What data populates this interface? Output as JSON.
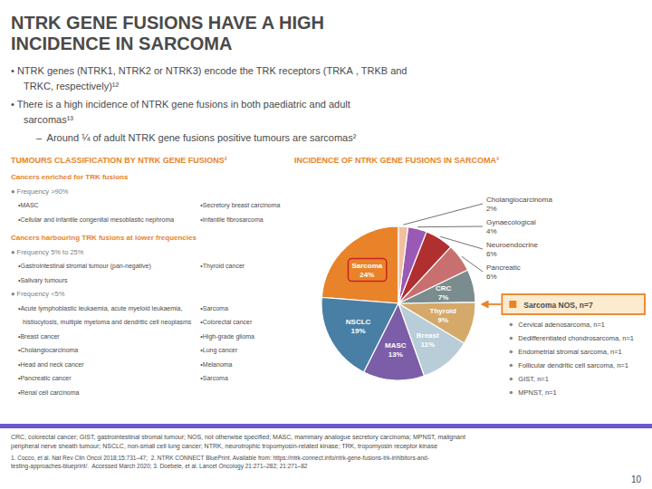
{
  "title": [
    "NTRK GENE FUSIONS HAVE A HIGH",
    "INCIDENCE IN SARCOMA"
  ],
  "intro": [
    "• NTRK genes (NTRK1, NTRK2 or NTRK3) encode the TRK receptors (TRKA , TRKB and",
    "TRKC, respectively)¹²",
    "• There is a high incidence of NTRK gene fusions in both paediatric and adult",
    "sarcomas¹³",
    "–  Around ¼ of adult NTRK gene fusions positive tumours are sarcomas²"
  ],
  "classification": {
    "title": "TUMOURS CLASSIFICATION BY NTRK GENE FUSIONS²",
    "sections": [
      {
        "heading": "Cancers enriched for TRK fusions",
        "groups": [
          {
            "label": "● Frequency >90%",
            "items": [
              [
                "•MASC",
                "•Secretory breast carcinoma"
              ],
              [
                "•Cellular and infantile congenital mesoblastic nephroma",
                "•Infantile fibrosarcoma"
              ]
            ]
          }
        ]
      },
      {
        "heading": "Cancers harbouring TRK fusions at lower frequencies",
        "groups": [
          {
            "label": "● Frequency 5% to 25%",
            "items": [
              [
                "•Gastrointestinal stromal tumour (pan-negative)",
                "•Thyroid cancer"
              ],
              [
                "•Salivary tumours"
              ]
            ]
          },
          {
            "label": "● Frequency <5%",
            "items": [
              [
                "•Acute lymphoblastic leukaemia, acute myeloid leukaemia,",
                "•Sarcoma"
              ],
              [
                "histiocytosis, multiple myeloma and dendritic cell neoplasms",
                "•Colorectal cancer"
              ],
              [
                "•Breast cancer",
                "•High-grade glioma"
              ],
              [
                "•Cholangiocarcinoma",
                "•Lung cancer"
              ],
              [
                "•Head and neck cancer",
                "•Melanoma"
              ],
              [
                "•Pancreatic cancer",
                "•Sarcoma"
              ],
              [
                "•Renal cell carcinoma"
              ]
            ]
          }
        ]
      }
    ]
  },
  "chart_data": {
    "type": "pie",
    "title": "INCIDENCE OF NTRK GENE FUSIONS IN SARCOMA³",
    "categories": [
      "Sarcoma",
      "NSCLC",
      "MASC",
      "Breast",
      "Thyroid",
      "CRC",
      "Pancreatic",
      "Neuroendocrine",
      "Gynaecological",
      "Cholangiocarcinoma"
    ],
    "values": [
      24,
      19,
      13,
      11,
      9,
      7,
      6,
      6,
      4,
      2
    ],
    "value_labels": [
      "24%",
      "19%",
      "13%",
      "11%",
      "9%",
      "7%",
      "6%",
      "6%",
      "4%",
      "2%"
    ],
    "colors": [
      "#e8832a",
      "#4a7fa5",
      "#7b5ea7",
      "#b8cdd8",
      "#d4a96a",
      "#7a8c8e",
      "#c87070",
      "#b03030",
      "#9b59b6",
      "#f0c0a0"
    ],
    "data_labels": true,
    "annotations": [
      {
        "text": "Sarcoma NOS, n=7",
        "items": [
          "Cervical adenosarcoma, n=1",
          "Dedifferentiated chondrosarcoma, n=1",
          "Endometrial stromal sarcoma, n=1",
          "Follicular dendritic cell sarcoma, n=1",
          "GIST, n=1",
          "MPNST, n=1"
        ]
      }
    ]
  },
  "footer": [
    "CRC, colorectal cancer; GIST, gastrointestinal stromal tumour; NOS, not otherwise specified; MASC, mammary analogue secretory carcinoma; MPNST, malignant",
    "peripheral nerve sheath tumour; NSCLC, non-small cell lung cancer; NTRK, neurotrophic tropomyosin-related kinase; TRK, tropomyosin receptor kinase",
    "1. Cocco, et al. Nat Rev Clin Oncol 2018;15:731–47;  2. NTRK CONNECT BluePrint. Available from: https://ntrk-connect.info/ntrk-gene-fusions-trk-inhibitors-and-",
    "testing-approaches-blueprint/.  Accessed March 2020; 3. Doebele, et al. Lancet Oncology 21:271–282; 21:271–82"
  ],
  "page_number": "10"
}
